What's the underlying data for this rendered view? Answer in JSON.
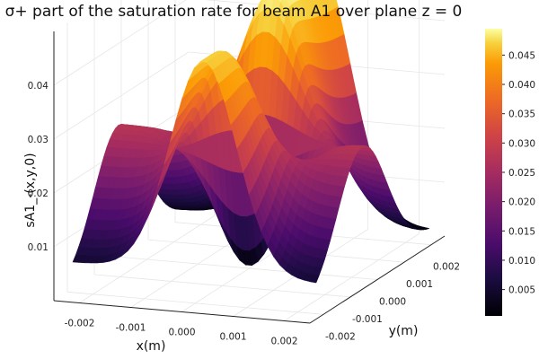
{
  "chart_data": {
    "type": "surface3d",
    "title": "σ+ part of the saturation rate for beam A1 over plane z = 0",
    "xlabel": "x(m)",
    "ylabel": "y(m)",
    "zlabel": "sA1_-(x,y,0)",
    "xlim": [
      -0.0025,
      0.0025
    ],
    "ylim": [
      -0.0025,
      0.0025
    ],
    "zlim": [
      0,
      0.05
    ],
    "x_ticks": [
      "-0.002",
      "-0.001",
      "0.000",
      "0.001",
      "0.002"
    ],
    "y_ticks": [
      "-0.002",
      "-0.001",
      "0.000",
      "0.001",
      "0.002"
    ],
    "z_ticks": [
      "0.01",
      "0.02",
      "0.03",
      "0.04"
    ],
    "colorbar": {
      "colormap": "inferno",
      "range": [
        0.0005,
        0.0495
      ],
      "ticks": [
        "0.005",
        "0.010",
        "0.015",
        "0.020",
        "0.025",
        "0.030",
        "0.035",
        "0.040",
        "0.045"
      ]
    },
    "grid": true
  }
}
